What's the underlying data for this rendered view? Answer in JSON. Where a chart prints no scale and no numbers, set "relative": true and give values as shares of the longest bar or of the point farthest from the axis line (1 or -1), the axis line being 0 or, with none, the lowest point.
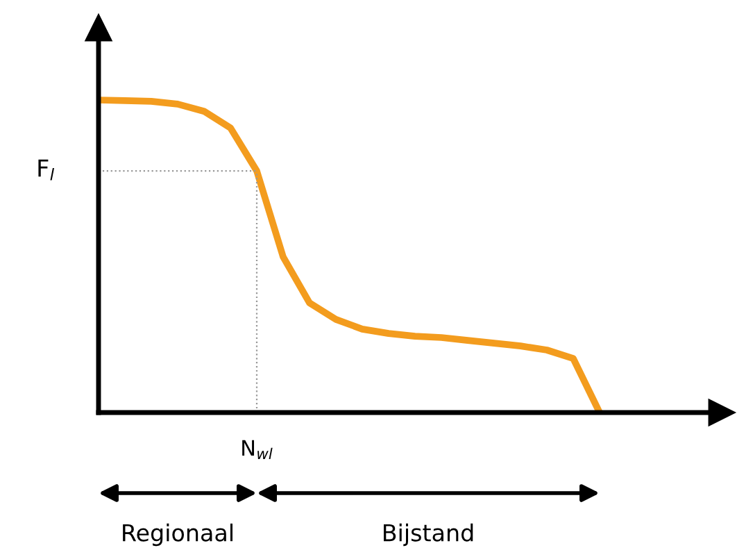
{
  "chart_data": {
    "type": "line",
    "relative": true,
    "ylabel": "F$_{l}$",
    "categories": [
      null,
      null,
      null,
      null,
      null,
      null,
      null,
      null,
      null,
      null,
      null,
      null,
      null,
      null,
      null,
      null,
      null,
      null,
      null,
      null
    ],
    "series": [
      {
        "color": "#f39c1e",
        "values": [
          1.0,
          0.998,
          0.996,
          0.987,
          0.964,
          0.911,
          0.773,
          0.498,
          0.351,
          0.298,
          0.267,
          0.253,
          0.244,
          0.24,
          0.231,
          0.222,
          0.213,
          0.2,
          0.173,
          0
        ]
      }
    ],
    "ref_lines": [
      {
        "axis": "y",
        "value": 0.773,
        "color": "#999999",
        "line_style": "dotted"
      }
    ],
    "annotations": [
      "N$_{wl}$",
      "Regionaal",
      "Bijstand"
    ],
    "marker": "none",
    "line_style": "solid"
  }
}
